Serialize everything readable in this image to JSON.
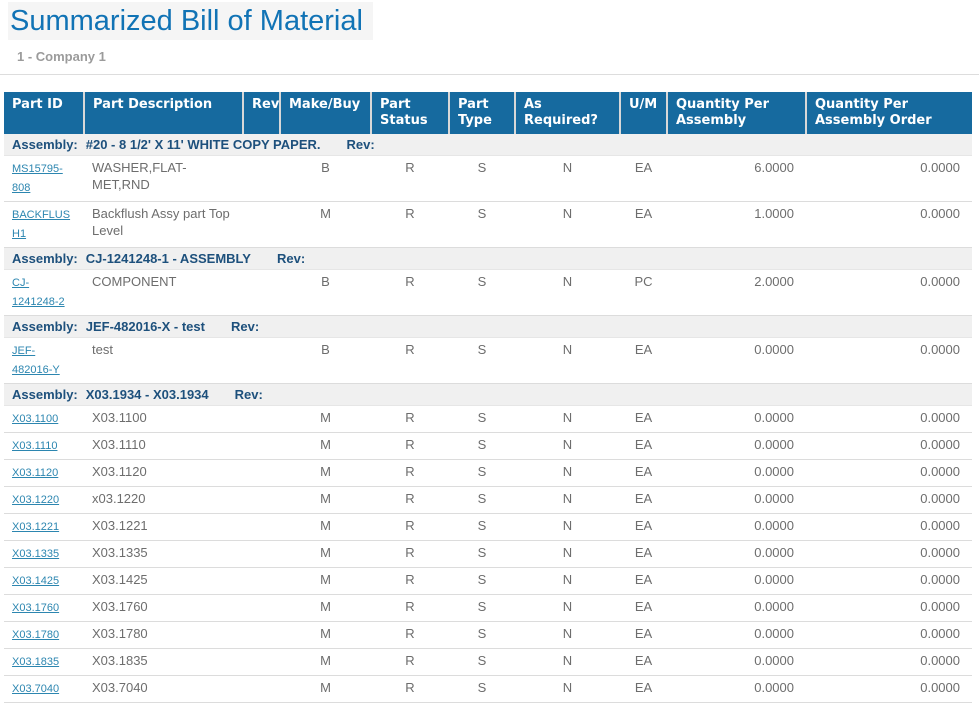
{
  "page": {
    "title": "Summarized Bill of Material",
    "subtitle": "1 - Company 1"
  },
  "colors": {
    "title": "#1173b5",
    "header_bg": "#166a9f",
    "header_text": "#ffffff",
    "section_text": "#1d507c",
    "section_bg": "#f0f0f0",
    "link": "#2c86b0",
    "body_text": "#6d6d6d",
    "subtitle": "#9b9b9b"
  },
  "table": {
    "assembly_label": "Assembly:",
    "rev_label": "Rev:",
    "columns": [
      {
        "key": "part_id",
        "label": "Part ID"
      },
      {
        "key": "part_description",
        "label": "Part Description"
      },
      {
        "key": "rev",
        "label": "Rev"
      },
      {
        "key": "make_buy",
        "label": "Make/Buy"
      },
      {
        "key": "part_status",
        "label": "Part Status"
      },
      {
        "key": "part_type",
        "label": "Part Type"
      },
      {
        "key": "as_required",
        "label": "As Required?"
      },
      {
        "key": "um",
        "label": "U/M"
      },
      {
        "key": "qty_per_assembly",
        "label": "Quantity Per Assembly"
      },
      {
        "key": "qty_per_assembly_order",
        "label": "Quantity Per Assembly Order"
      }
    ],
    "sections": [
      {
        "assembly": "#20 - 8 1/2' X 11' WHITE COPY PAPER.",
        "rows": [
          {
            "part_id": "MS15795-808",
            "part_description": "WASHER,FLAT-MET,RND",
            "rev": "",
            "make_buy": "B",
            "part_status": "R",
            "part_type": "S",
            "as_required": "N",
            "um": "EA",
            "qty_per_assembly": "6.0000",
            "qty_per_assembly_order": "0.0000"
          },
          {
            "part_id": "BACKFLUSH1",
            "part_description": "Backflush Assy part Top Level",
            "rev": "",
            "make_buy": "M",
            "part_status": "R",
            "part_type": "S",
            "as_required": "N",
            "um": "EA",
            "qty_per_assembly": "1.0000",
            "qty_per_assembly_order": "0.0000"
          }
        ]
      },
      {
        "assembly": "CJ-1241248-1 - ASSEMBLY",
        "rows": [
          {
            "part_id": "CJ-1241248-2",
            "part_description": "COMPONENT",
            "rev": "",
            "make_buy": "B",
            "part_status": "R",
            "part_type": "S",
            "as_required": "N",
            "um": "PC",
            "qty_per_assembly": "2.0000",
            "qty_per_assembly_order": "0.0000"
          }
        ]
      },
      {
        "assembly": "JEF-482016-X - test",
        "rows": [
          {
            "part_id": "JEF-482016-Y",
            "part_description": "test",
            "rev": "",
            "make_buy": "B",
            "part_status": "R",
            "part_type": "S",
            "as_required": "N",
            "um": "EA",
            "qty_per_assembly": "0.0000",
            "qty_per_assembly_order": "0.0000"
          }
        ]
      },
      {
        "assembly": "X03.1934 - X03.1934",
        "rows": [
          {
            "part_id": "X03.1100",
            "part_description": "X03.1100",
            "rev": "",
            "make_buy": "M",
            "part_status": "R",
            "part_type": "S",
            "as_required": "N",
            "um": "EA",
            "qty_per_assembly": "0.0000",
            "qty_per_assembly_order": "0.0000"
          },
          {
            "part_id": "X03.1110",
            "part_description": "X03.1110",
            "rev": "",
            "make_buy": "M",
            "part_status": "R",
            "part_type": "S",
            "as_required": "N",
            "um": "EA",
            "qty_per_assembly": "0.0000",
            "qty_per_assembly_order": "0.0000"
          },
          {
            "part_id": "X03.1120",
            "part_description": "X03.1120",
            "rev": "",
            "make_buy": "M",
            "part_status": "R",
            "part_type": "S",
            "as_required": "N",
            "um": "EA",
            "qty_per_assembly": "0.0000",
            "qty_per_assembly_order": "0.0000"
          },
          {
            "part_id": "X03.1220",
            "part_description": "x03.1220",
            "rev": "",
            "make_buy": "M",
            "part_status": "R",
            "part_type": "S",
            "as_required": "N",
            "um": "EA",
            "qty_per_assembly": "0.0000",
            "qty_per_assembly_order": "0.0000"
          },
          {
            "part_id": "X03.1221",
            "part_description": "X03.1221",
            "rev": "",
            "make_buy": "M",
            "part_status": "R",
            "part_type": "S",
            "as_required": "N",
            "um": "EA",
            "qty_per_assembly": "0.0000",
            "qty_per_assembly_order": "0.0000"
          },
          {
            "part_id": "X03.1335",
            "part_description": "X03.1335",
            "rev": "",
            "make_buy": "M",
            "part_status": "R",
            "part_type": "S",
            "as_required": "N",
            "um": "EA",
            "qty_per_assembly": "0.0000",
            "qty_per_assembly_order": "0.0000"
          },
          {
            "part_id": "X03.1425",
            "part_description": "X03.1425",
            "rev": "",
            "make_buy": "M",
            "part_status": "R",
            "part_type": "S",
            "as_required": "N",
            "um": "EA",
            "qty_per_assembly": "0.0000",
            "qty_per_assembly_order": "0.0000"
          },
          {
            "part_id": "X03.1760",
            "part_description": "X03.1760",
            "rev": "",
            "make_buy": "M",
            "part_status": "R",
            "part_type": "S",
            "as_required": "N",
            "um": "EA",
            "qty_per_assembly": "0.0000",
            "qty_per_assembly_order": "0.0000"
          },
          {
            "part_id": "X03.1780",
            "part_description": "X03.1780",
            "rev": "",
            "make_buy": "M",
            "part_status": "R",
            "part_type": "S",
            "as_required": "N",
            "um": "EA",
            "qty_per_assembly": "0.0000",
            "qty_per_assembly_order": "0.0000"
          },
          {
            "part_id": "X03.1835",
            "part_description": "X03.1835",
            "rev": "",
            "make_buy": "M",
            "part_status": "R",
            "part_type": "S",
            "as_required": "N",
            "um": "EA",
            "qty_per_assembly": "0.0000",
            "qty_per_assembly_order": "0.0000"
          },
          {
            "part_id": "X03.7040",
            "part_description": "X03.7040",
            "rev": "",
            "make_buy": "M",
            "part_status": "R",
            "part_type": "S",
            "as_required": "N",
            "um": "EA",
            "qty_per_assembly": "0.0000",
            "qty_per_assembly_order": "0.0000"
          }
        ]
      }
    ]
  }
}
